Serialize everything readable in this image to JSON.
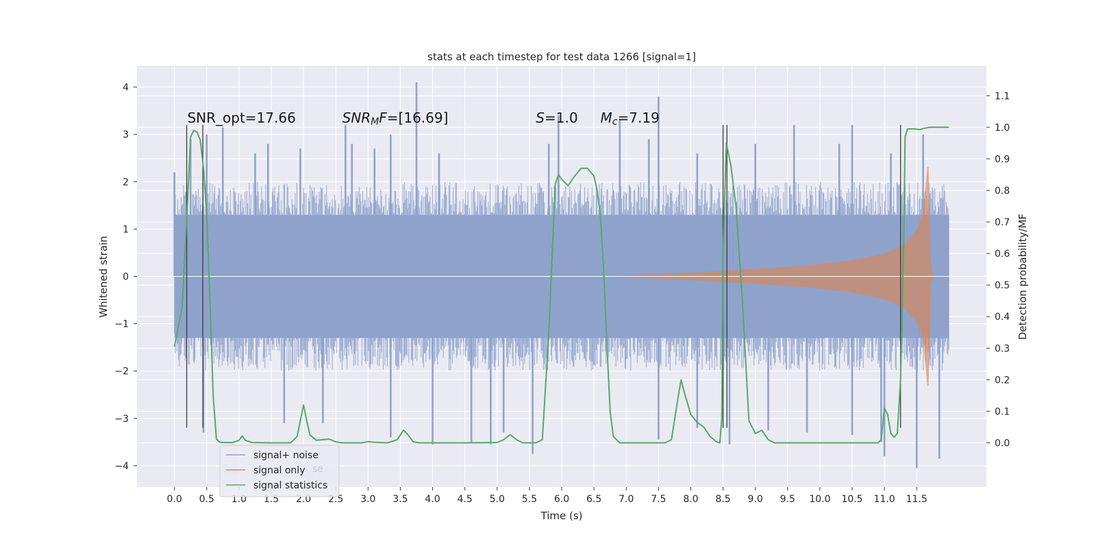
{
  "chart_data": {
    "type": "line",
    "title": "stats at each timestep for test data 1266 [signal=1]",
    "xlabel": "Time (s)",
    "ylabel": "Whitened strain",
    "y2label": "Detection probability/MF",
    "xlim": [
      -0.58,
      12.58
    ],
    "ylim": [
      -4.45,
      4.45
    ],
    "y2lim": [
      -0.14,
      1.195
    ],
    "xticks": [
      0.0,
      0.5,
      1.0,
      1.5,
      2.0,
      2.5,
      3.0,
      3.5,
      4.0,
      4.5,
      5.0,
      5.5,
      6.0,
      6.5,
      7.0,
      7.5,
      8.0,
      8.5,
      9.0,
      9.5,
      10.0,
      10.5,
      11.0,
      11.5
    ],
    "xtick_labels": [
      "0.0",
      "0.5",
      "1.0",
      "1.5",
      "2.0",
      "2.5",
      "3.0",
      "3.5",
      "4.0",
      "4.5",
      "5.0",
      "5.5",
      "6.0",
      "6.5",
      "7.0",
      "7.5",
      "8.0",
      "8.5",
      "9.0",
      "9.5",
      "10.0",
      "10.5",
      "11.0",
      "11.5"
    ],
    "yticks": [
      4,
      3,
      2,
      1,
      0,
      -1,
      -2,
      -3,
      -4
    ],
    "ytick_labels": [
      "4",
      "3",
      "2",
      "1",
      "0",
      "−1",
      "−2",
      "−3",
      "−4"
    ],
    "y2ticks": [
      1.1,
      1.0,
      0.9,
      0.8,
      0.7,
      0.6,
      0.5,
      0.4,
      0.3,
      0.2,
      0.1,
      0.0
    ],
    "y2tick_labels": [
      "1.1",
      "1.0",
      "0.9",
      "0.8",
      "0.7",
      "0.6",
      "0.5",
      "0.4",
      "0.3",
      "0.2",
      "0.1",
      "0.0"
    ],
    "grid": true,
    "legend_position": "lower-left",
    "annotations": [
      {
        "label": "SNR_opt=17.66",
        "x": 0.2,
        "y": 3.25
      },
      {
        "label_parts": [
          {
            "t": "SNR",
            "italic": true
          },
          {
            "t": "M",
            "italic": true,
            "sub": true
          },
          {
            "t": "F",
            "italic": true
          },
          {
            "t": "=[16.69]",
            "italic": false
          }
        ],
        "x": 2.6,
        "y": 3.25
      },
      {
        "label_parts": [
          {
            "t": "S",
            "italic": true
          },
          {
            "t": "=1.0",
            "italic": false
          }
        ],
        "x": 5.6,
        "y": 3.25
      },
      {
        "label_parts": [
          {
            "t": "M",
            "italic": true
          },
          {
            "t": "c",
            "italic": true,
            "sub": true
          },
          {
            "t": "=7.19",
            "italic": false
          }
        ],
        "x": 6.6,
        "y": 3.25
      }
    ],
    "vlines": [
      0.19,
      0.44,
      8.5,
      8.56,
      11.25
    ],
    "vline_range": [
      -3.2,
      3.2
    ],
    "series": [
      {
        "name": "signal+ noise",
        "axis": "left",
        "kind": "noise_band",
        "color": "#8ea2cc",
        "x_range": [
          0.0,
          12.0
        ],
        "dense_envelope": [
          -1.3,
          1.3
        ],
        "typical_peak": 1.9,
        "spikes": [
          {
            "x": 0.0,
            "y": 2.2
          },
          {
            "x": 0.25,
            "y": 2.9
          },
          {
            "x": 0.5,
            "y": 3.0
          },
          {
            "x": 0.75,
            "y": 3.15
          },
          {
            "x": 1.25,
            "y": 2.6
          },
          {
            "x": 1.45,
            "y": 2.8
          },
          {
            "x": 1.95,
            "y": 2.7
          },
          {
            "x": 2.65,
            "y": 3.2
          },
          {
            "x": 2.75,
            "y": 2.8
          },
          {
            "x": 3.1,
            "y": 2.7
          },
          {
            "x": 3.35,
            "y": 3.0
          },
          {
            "x": 3.75,
            "y": 4.1
          },
          {
            "x": 4.1,
            "y": 2.6
          },
          {
            "x": 5.8,
            "y": 2.8
          },
          {
            "x": 5.95,
            "y": 3.4
          },
          {
            "x": 6.9,
            "y": 3.3
          },
          {
            "x": 7.35,
            "y": 2.9
          },
          {
            "x": 7.5,
            "y": 3.8
          },
          {
            "x": 8.1,
            "y": 2.6
          },
          {
            "x": 9.0,
            "y": 2.8
          },
          {
            "x": 9.6,
            "y": 3.2
          },
          {
            "x": 10.3,
            "y": 2.8
          },
          {
            "x": 10.5,
            "y": 3.2
          },
          {
            "x": 11.1,
            "y": 2.6
          },
          {
            "x": 11.6,
            "y": 3.0
          },
          {
            "x": 0.45,
            "y": -3.3
          },
          {
            "x": 1.7,
            "y": -3.1
          },
          {
            "x": 2.3,
            "y": -3.1
          },
          {
            "x": 3.35,
            "y": -3.4
          },
          {
            "x": 4.0,
            "y": -3.55
          },
          {
            "x": 4.6,
            "y": -3.5
          },
          {
            "x": 4.9,
            "y": -3.55
          },
          {
            "x": 5.1,
            "y": -3.3
          },
          {
            "x": 5.55,
            "y": -3.75
          },
          {
            "x": 7.5,
            "y": -3.45
          },
          {
            "x": 8.1,
            "y": -3.2
          },
          {
            "x": 8.6,
            "y": -3.55
          },
          {
            "x": 9.2,
            "y": -3.25
          },
          {
            "x": 9.8,
            "y": -3.3
          },
          {
            "x": 10.5,
            "y": -3.35
          },
          {
            "x": 10.95,
            "y": -3.5
          },
          {
            "x": 11.0,
            "y": -3.8
          },
          {
            "x": 11.5,
            "y": -4.05
          },
          {
            "x": 11.85,
            "y": -3.85
          }
        ]
      },
      {
        "name": "signal only",
        "axis": "left",
        "kind": "chirp",
        "color": "#dd8452",
        "envelope": [
          {
            "x": 6.8,
            "a": 0.0
          },
          {
            "x": 7.0,
            "a": 0.02
          },
          {
            "x": 7.5,
            "a": 0.05
          },
          {
            "x": 8.0,
            "a": 0.08
          },
          {
            "x": 8.5,
            "a": 0.12
          },
          {
            "x": 9.0,
            "a": 0.16
          },
          {
            "x": 9.5,
            "a": 0.2
          },
          {
            "x": 10.0,
            "a": 0.26
          },
          {
            "x": 10.5,
            "a": 0.34
          },
          {
            "x": 11.0,
            "a": 0.48
          },
          {
            "x": 11.3,
            "a": 0.66
          },
          {
            "x": 11.5,
            "a": 0.98
          },
          {
            "x": 11.6,
            "a": 1.35
          },
          {
            "x": 11.68,
            "a": 2.55
          },
          {
            "x": 11.72,
            "a": 0.15
          },
          {
            "x": 11.78,
            "a": 0.0
          }
        ]
      },
      {
        "name": "signal statistics",
        "axis": "right",
        "kind": "line",
        "color": "#55a868",
        "points": [
          [
            0.0,
            0.305
          ],
          [
            0.12,
            0.43
          ],
          [
            0.2,
            0.75
          ],
          [
            0.25,
            0.97
          ],
          [
            0.3,
            0.99
          ],
          [
            0.35,
            0.985
          ],
          [
            0.4,
            0.96
          ],
          [
            0.45,
            0.87
          ],
          [
            0.5,
            0.72
          ],
          [
            0.55,
            0.45
          ],
          [
            0.6,
            0.15
          ],
          [
            0.65,
            0.012
          ],
          [
            0.7,
            0.002
          ],
          [
            0.8,
            0.001
          ],
          [
            0.9,
            0.001
          ],
          [
            1.0,
            0.008
          ],
          [
            1.05,
            0.022
          ],
          [
            1.1,
            0.008
          ],
          [
            1.2,
            0.001
          ],
          [
            1.5,
            0.0
          ],
          [
            1.8,
            0.0
          ],
          [
            1.9,
            0.02
          ],
          [
            1.95,
            0.07
          ],
          [
            2.0,
            0.12
          ],
          [
            2.05,
            0.07
          ],
          [
            2.1,
            0.025
          ],
          [
            2.2,
            0.008
          ],
          [
            2.3,
            0.01
          ],
          [
            2.4,
            0.012
          ],
          [
            2.5,
            0.003
          ],
          [
            2.6,
            0.0
          ],
          [
            2.9,
            0.0
          ],
          [
            3.0,
            0.004
          ],
          [
            3.1,
            0.002
          ],
          [
            3.3,
            0.0
          ],
          [
            3.45,
            0.01
          ],
          [
            3.55,
            0.04
          ],
          [
            3.6,
            0.03
          ],
          [
            3.7,
            0.003
          ],
          [
            3.8,
            0.0
          ],
          [
            4.5,
            0.0
          ],
          [
            5.0,
            0.001
          ],
          [
            5.1,
            0.01
          ],
          [
            5.2,
            0.026
          ],
          [
            5.3,
            0.01
          ],
          [
            5.4,
            0.0
          ],
          [
            5.6,
            0.0
          ],
          [
            5.7,
            0.01
          ],
          [
            5.8,
            0.35
          ],
          [
            5.9,
            0.82
          ],
          [
            5.95,
            0.85
          ],
          [
            6.0,
            0.835
          ],
          [
            6.1,
            0.815
          ],
          [
            6.2,
            0.845
          ],
          [
            6.3,
            0.87
          ],
          [
            6.4,
            0.87
          ],
          [
            6.5,
            0.845
          ],
          [
            6.55,
            0.8
          ],
          [
            6.6,
            0.72
          ],
          [
            6.65,
            0.55
          ],
          [
            6.7,
            0.31
          ],
          [
            6.75,
            0.1
          ],
          [
            6.8,
            0.02
          ],
          [
            6.9,
            0.0
          ],
          [
            7.2,
            0.0
          ],
          [
            7.6,
            0.0
          ],
          [
            7.7,
            0.01
          ],
          [
            7.8,
            0.14
          ],
          [
            7.85,
            0.2
          ],
          [
            7.9,
            0.16
          ],
          [
            8.0,
            0.09
          ],
          [
            8.1,
            0.065
          ],
          [
            8.2,
            0.05
          ],
          [
            8.3,
            0.02
          ],
          [
            8.4,
            0.003
          ],
          [
            8.45,
            0.0
          ],
          [
            8.48,
            0.08
          ],
          [
            8.5,
            0.6
          ],
          [
            8.55,
            0.95
          ],
          [
            8.62,
            0.88
          ],
          [
            8.7,
            0.75
          ],
          [
            8.8,
            0.45
          ],
          [
            8.9,
            0.07
          ],
          [
            9.0,
            0.03
          ],
          [
            9.1,
            0.04
          ],
          [
            9.2,
            0.01
          ],
          [
            9.3,
            0.0
          ],
          [
            10.0,
            0.0
          ],
          [
            10.9,
            0.0
          ],
          [
            10.95,
            0.01
          ],
          [
            11.0,
            0.11
          ],
          [
            11.05,
            0.09
          ],
          [
            11.1,
            0.03
          ],
          [
            11.15,
            0.018
          ],
          [
            11.2,
            0.03
          ],
          [
            11.25,
            0.2
          ],
          [
            11.3,
            0.65
          ],
          [
            11.32,
            0.97
          ],
          [
            11.36,
            0.995
          ],
          [
            11.45,
            0.995
          ],
          [
            11.55,
            0.993
          ],
          [
            11.62,
            0.997
          ],
          [
            11.7,
            1.0
          ],
          [
            12.0,
            1.0
          ]
        ]
      }
    ]
  },
  "legend": [
    {
      "label": "signal+ noise",
      "color": "#8ea2cc"
    },
    {
      "label": "signal only",
      "color": "#dd8452"
    },
    {
      "label": "signal statistics",
      "color": "#55a868"
    }
  ],
  "legend_ghost_text": "se"
}
